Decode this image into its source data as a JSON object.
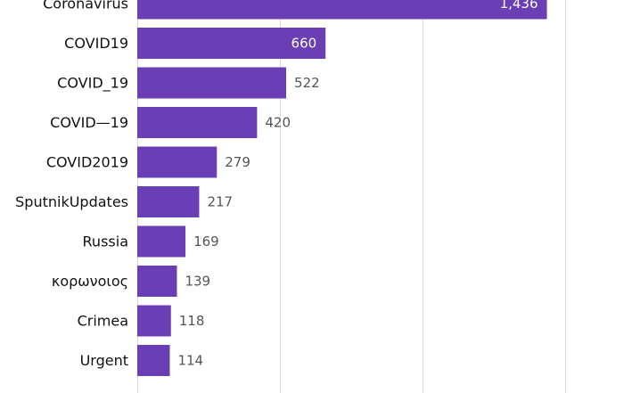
{
  "chart_data": {
    "type": "bar",
    "orientation": "horizontal",
    "categories": [
      "Coronavirus",
      "COVID19",
      "COVID_19",
      "COVID—19",
      "COVID2019",
      "SputnikUpdates",
      "Russia",
      "κορωνοιος",
      "Crimea",
      "Urgent"
    ],
    "values": [
      1436,
      660,
      522,
      420,
      279,
      217,
      169,
      139,
      118,
      114
    ],
    "value_labels": [
      "1,436",
      "660",
      "522",
      "420",
      "279",
      "217",
      "169",
      "139",
      "118",
      "114"
    ],
    "xlim": [
      0,
      1500
    ],
    "grid": true,
    "bar_color": "#6a3fb5",
    "value_label_color": "#555555",
    "inner_label_color": "#ffffff",
    "category_label_color": "#111111",
    "grid_color": "#d9d9d9"
  }
}
